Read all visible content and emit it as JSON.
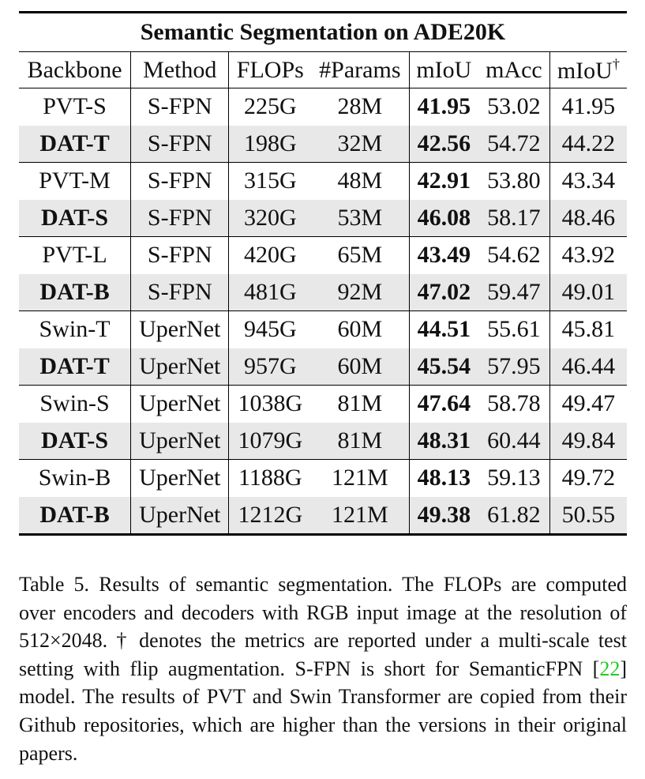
{
  "table": {
    "title": "Semantic Segmentation on ADE20K",
    "headers": [
      "Backbone",
      "Method",
      "FLOPs",
      "#Params",
      "mIoU",
      "mAcc",
      "mIoU",
      "†"
    ],
    "rows": [
      {
        "backbone": "PVT-S",
        "method": "S-FPN",
        "flops": "225G",
        "params": "28M",
        "miou": "41.95",
        "macc": "53.02",
        "miou_ms": "41.95",
        "ours": false
      },
      {
        "backbone": "DAT-T",
        "method": "S-FPN",
        "flops": "198G",
        "params": "32M",
        "miou": "42.56",
        "macc": "54.72",
        "miou_ms": "44.22",
        "ours": true
      },
      {
        "backbone": "PVT-M",
        "method": "S-FPN",
        "flops": "315G",
        "params": "48M",
        "miou": "42.91",
        "macc": "53.80",
        "miou_ms": "43.34",
        "ours": false
      },
      {
        "backbone": "DAT-S",
        "method": "S-FPN",
        "flops": "320G",
        "params": "53M",
        "miou": "46.08",
        "macc": "58.17",
        "miou_ms": "48.46",
        "ours": true
      },
      {
        "backbone": "PVT-L",
        "method": "S-FPN",
        "flops": "420G",
        "params": "65M",
        "miou": "43.49",
        "macc": "54.62",
        "miou_ms": "43.92",
        "ours": false
      },
      {
        "backbone": "DAT-B",
        "method": "S-FPN",
        "flops": "481G",
        "params": "92M",
        "miou": "47.02",
        "macc": "59.47",
        "miou_ms": "49.01",
        "ours": true
      },
      {
        "backbone": "Swin-T",
        "method": "UperNet",
        "flops": "945G",
        "params": "60M",
        "miou": "44.51",
        "macc": "55.61",
        "miou_ms": "45.81",
        "ours": false
      },
      {
        "backbone": "DAT-T",
        "method": "UperNet",
        "flops": "957G",
        "params": "60M",
        "miou": "45.54",
        "macc": "57.95",
        "miou_ms": "46.44",
        "ours": true
      },
      {
        "backbone": "Swin-S",
        "method": "UperNet",
        "flops": "1038G",
        "params": "81M",
        "miou": "47.64",
        "macc": "58.78",
        "miou_ms": "49.47",
        "ours": false
      },
      {
        "backbone": "DAT-S",
        "method": "UperNet",
        "flops": "1079G",
        "params": "81M",
        "miou": "48.31",
        "macc": "60.44",
        "miou_ms": "49.84",
        "ours": true
      },
      {
        "backbone": "Swin-B",
        "method": "UperNet",
        "flops": "1188G",
        "params": "121M",
        "miou": "48.13",
        "macc": "59.13",
        "miou_ms": "49.72",
        "ours": false
      },
      {
        "backbone": "DAT-B",
        "method": "UperNet",
        "flops": "1212G",
        "params": "121M",
        "miou": "49.38",
        "macc": "61.82",
        "miou_ms": "50.55",
        "ours": true
      }
    ]
  },
  "caption": {
    "lead": "Table 5. Results of semantic segmentation. The FLOPs are com­puted over encoders and decoders with RGB input image at the resolution of 512×2048. † denotes the metrics are reported under a multi-scale test setting with flip augmentation. S-FPN is short for SemanticFPN [",
    "ref": "22",
    "tail": "] model. The results of PVT and Swin Trans­former are copied from their Github repositories, which are higher than the versions in their original papers."
  },
  "colors": {
    "highlight_row": "#e8e8e8",
    "citation": "#22cc22"
  }
}
